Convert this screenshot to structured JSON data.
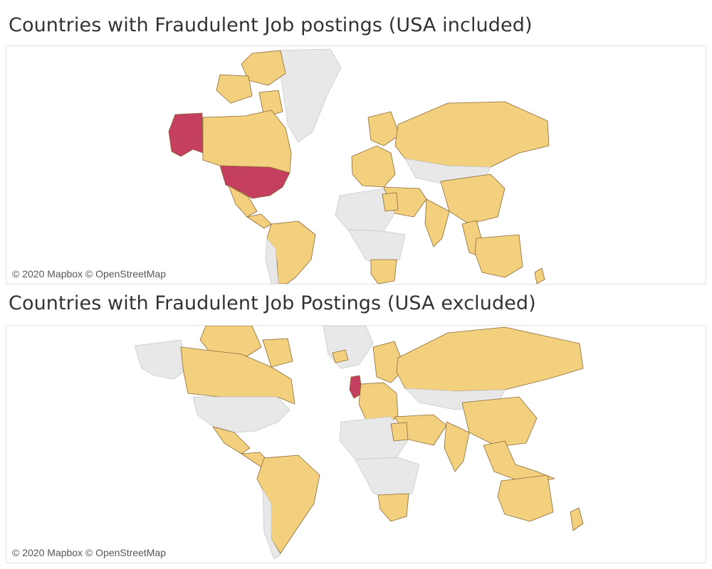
{
  "maps": [
    {
      "title": "Countries with Fraudulent Job postings (USA included)",
      "attribution": "© 2020 Mapbox © OpenStreetMap",
      "highlighted_countries": [
        "United States"
      ]
    },
    {
      "title": "Countries with Fraudulent Job Postings (USA excluded)",
      "attribution": "© 2020 Mapbox © OpenStreetMap",
      "highlighted_countries": [
        "United Kingdom"
      ]
    }
  ],
  "colors": {
    "highlight": "#c4405e",
    "with_postings": "#f3d07e",
    "no_postings": "#e8e8e8",
    "border": "#8a6a38"
  },
  "chart_data": {
    "type": "map",
    "legend": [],
    "maps": [
      {
        "highlighted": [
          "United States"
        ],
        "with_postings": [
          "Canada",
          "Mexico",
          "Brazil",
          "Peru",
          "Colombia",
          "Argentina",
          "United Kingdom",
          "Germany",
          "France",
          "Russia",
          "China",
          "India",
          "Australia",
          "Egypt",
          "South Africa",
          "Greenland",
          "Turkey"
        ],
        "no_postings": [
          "Mongolia",
          "Kazakhstan",
          "Algeria",
          "Libya",
          "Chad",
          "Mali",
          "Niger"
        ]
      },
      {
        "highlighted": [
          "United Kingdom"
        ],
        "with_postings": [
          "Canada",
          "Mexico",
          "Brazil",
          "Peru",
          "Colombia",
          "Argentina",
          "Germany",
          "France",
          "Russia",
          "China",
          "India",
          "Australia",
          "Egypt",
          "South Africa",
          "Turkey"
        ],
        "no_postings": [
          "United States",
          "Greenland",
          "Mongolia",
          "Kazakhstan",
          "Algeria",
          "Libya",
          "Chad",
          "Mali",
          "Niger"
        ]
      }
    ]
  }
}
